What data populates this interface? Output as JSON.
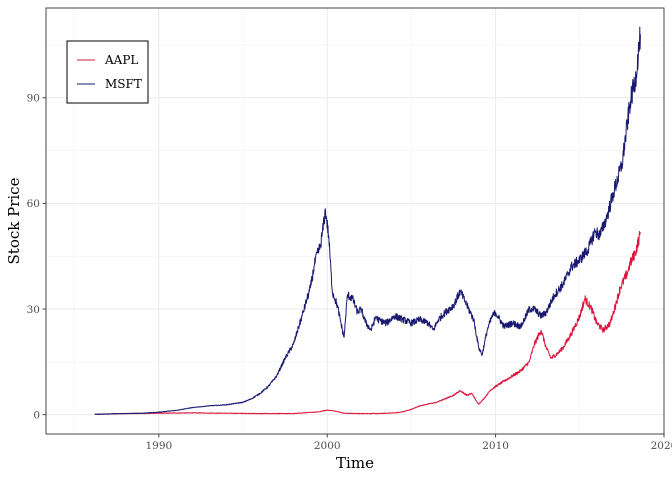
{
  "chart_data": {
    "type": "line",
    "title": "",
    "xlabel": "Time",
    "ylabel": "Stock Price",
    "xlim": [
      1983.3,
      2020.0
    ],
    "ylim": [
      -5.5,
      115.5
    ],
    "x_ticks": [
      1990,
      2000,
      2010,
      2020
    ],
    "y_ticks": [
      0,
      30,
      60,
      90
    ],
    "grid": true,
    "legend_position": "top-left",
    "series": [
      {
        "name": "AAPL",
        "color": "#dc143c",
        "x": [
          1986.2,
          1988,
          1990,
          1992,
          1994,
          1996,
          1998,
          1999.5,
          2000.0,
          2000.5,
          2001,
          2002,
          2003,
          2004,
          2004.5,
          2005,
          2005.5,
          2006,
          2006.5,
          2007,
          2007.5,
          2007.9,
          2008.3,
          2008.6,
          2008.9,
          2009.0,
          2009.3,
          2009.7,
          2010.0,
          2010.5,
          2011.0,
          2011.5,
          2012.0,
          2012.3,
          2012.7,
          2013.0,
          2013.3,
          2013.7,
          2014.0,
          2014.5,
          2015.0,
          2015.3,
          2015.7,
          2016.0,
          2016.4,
          2016.8,
          2017.0,
          2017.4,
          2017.8,
          2018.0,
          2018.3,
          2018.6
        ],
        "y": [
          0.1,
          0.3,
          0.4,
          0.5,
          0.4,
          0.3,
          0.3,
          0.8,
          1.3,
          1.0,
          0.4,
          0.3,
          0.3,
          0.5,
          0.8,
          1.5,
          2.5,
          3.0,
          3.5,
          4.5,
          5.5,
          6.8,
          5.5,
          6.0,
          3.5,
          3.0,
          4.5,
          7.0,
          8.0,
          9.5,
          11.0,
          12.5,
          15.0,
          20.0,
          24.0,
          19.0,
          16.0,
          17.5,
          19.0,
          23.0,
          28.0,
          33.0,
          30.0,
          26.0,
          24.0,
          26.0,
          29.0,
          36.0,
          40.0,
          43.0,
          46.0,
          51.5
        ]
      },
      {
        "name": "MSFT",
        "color": "#191970",
        "x": [
          1986.2,
          1987,
          1988,
          1989,
          1990,
          1991,
          1992,
          1993,
          1994,
          1995,
          1995.5,
          1996,
          1996.5,
          1997,
          1997.5,
          1998,
          1998.5,
          1999,
          1999.3,
          1999.6,
          1999.9,
          2000.1,
          2000.3,
          2000.6,
          2000.9,
          2001.0,
          2001.2,
          2001.5,
          2001.8,
          2002.0,
          2002.3,
          2002.6,
          2002.9,
          2003.0,
          2003.5,
          2004.0,
          2004.5,
          2005.0,
          2005.5,
          2006.0,
          2006.3,
          2006.6,
          2007.0,
          2007.5,
          2007.9,
          2008.3,
          2008.7,
          2009.0,
          2009.2,
          2009.5,
          2009.8,
          2010.0,
          2010.5,
          2011.0,
          2011.5,
          2012.0,
          2012.3,
          2012.7,
          2013.0,
          2013.5,
          2014.0,
          2014.5,
          2015.0,
          2015.5,
          2015.9,
          2016.2,
          2016.6,
          2017.0,
          2017.5,
          2018.0,
          2018.3,
          2018.6
        ],
        "y": [
          0.1,
          0.2,
          0.3,
          0.4,
          0.7,
          1.2,
          2.0,
          2.5,
          2.8,
          3.5,
          4.5,
          6.0,
          8.0,
          11.0,
          16.0,
          20.0,
          28.0,
          36.0,
          44.0,
          48.0,
          58.0,
          50.0,
          35.0,
          31.0,
          24.0,
          22.0,
          34.0,
          33.0,
          29.0,
          30.0,
          26.0,
          24.0,
          28.0,
          27.0,
          26.0,
          28.0,
          27.0,
          26.0,
          27.0,
          26.0,
          24.0,
          27.0,
          29.0,
          31.0,
          35.0,
          31.0,
          27.0,
          19.0,
          17.0,
          24.0,
          28.0,
          29.0,
          25.0,
          26.0,
          25.0,
          30.0,
          30.0,
          28.0,
          29.0,
          34.0,
          37.0,
          42.0,
          44.0,
          47.0,
          52.0,
          51.0,
          56.0,
          63.0,
          71.0,
          89.0,
          95.0,
          108.0
        ]
      }
    ]
  }
}
